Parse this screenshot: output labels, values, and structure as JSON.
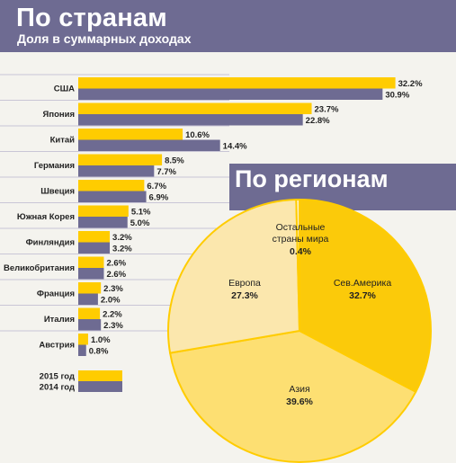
{
  "header": {
    "title": "По странам",
    "subtitle": "Доля в суммарных доходах"
  },
  "pie_header": {
    "title": "По регионам"
  },
  "colors": {
    "header_bg": "#6e6b92",
    "bar_2015": "#ffcc00",
    "bar_2014": "#6e6b92",
    "pie_north_america": "#fbca0a",
    "pie_asia": "#fddf72",
    "pie_europe": "#fbe7ad",
    "pie_rest": "#fcf3d6",
    "pie_stroke": "#ffcc00"
  },
  "chart_data": [
    {
      "type": "bar",
      "orientation": "horizontal",
      "title": "По странам",
      "subtitle": "Доля в суммарных доходах",
      "categories": [
        "США",
        "Япония",
        "Китай",
        "Германия",
        "Швеция",
        "Южная Корея",
        "Финляндия",
        "Великобритания",
        "Франция",
        "Италия",
        "Австрия"
      ],
      "series": [
        {
          "name": "2015 год",
          "values": [
            32.2,
            23.7,
            10.6,
            8.5,
            6.7,
            5.1,
            3.2,
            2.6,
            2.3,
            2.2,
            1.0
          ],
          "labels": [
            "32.2%",
            "23.7%",
            "10.6%",
            "8.5%",
            "6.7%",
            "5.1%",
            "3.2%",
            "2.6%",
            "2.3%",
            "2.2%",
            "1.0%"
          ]
        },
        {
          "name": "2014 год",
          "values": [
            30.9,
            22.8,
            14.4,
            7.7,
            6.9,
            5.0,
            3.2,
            2.6,
            2.0,
            2.3,
            0.8
          ],
          "labels": [
            "30.9%",
            "22.8%",
            "14.4%",
            "7.7%",
            "6.9%",
            "5.0%",
            "3.2%",
            "2.6%",
            "2.0%",
            "2.3%",
            "0.8%"
          ]
        }
      ],
      "xlim": [
        0,
        34
      ],
      "legend_position": "bottom-left",
      "grid": false
    },
    {
      "type": "pie",
      "title": "По регионам",
      "slices": [
        {
          "name": "Сев.Америка",
          "value": 32.7,
          "label": "32.7%",
          "label_lines": [
            "Сев.Америка"
          ]
        },
        {
          "name": "Азия",
          "value": 39.6,
          "label": "39.6%",
          "label_lines": [
            "Азия"
          ]
        },
        {
          "name": "Европа",
          "value": 27.3,
          "label": "27.3%",
          "label_lines": [
            "Европа"
          ]
        },
        {
          "name": "Остальные страны мира",
          "value": 0.4,
          "label": "0.4%",
          "label_lines": [
            "Остальные",
            "страны мира"
          ]
        }
      ]
    }
  ]
}
